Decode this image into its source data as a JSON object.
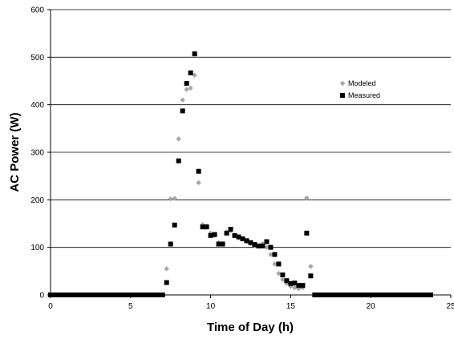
{
  "chart_data": {
    "type": "scatter",
    "title": "",
    "xlabel": "Time of Day (h)",
    "ylabel": "AC Power (W)",
    "xlim": [
      0,
      25
    ],
    "ylim": [
      0,
      600
    ],
    "x_ticks": [
      "0",
      "5",
      "10",
      "15",
      "20",
      "25"
    ],
    "y_ticks": [
      "0",
      "100",
      "200",
      "300",
      "400",
      "500",
      "600"
    ],
    "grid": "horizontal",
    "legend_position": "right",
    "series": [
      {
        "name": "Modeled",
        "color": "#a6a6a6",
        "marker": "diamond",
        "points": [
          [
            0.0,
            0
          ],
          [
            0.25,
            0
          ],
          [
            0.5,
            0
          ],
          [
            0.75,
            0
          ],
          [
            1.0,
            0
          ],
          [
            1.25,
            0
          ],
          [
            1.5,
            0
          ],
          [
            1.75,
            0
          ],
          [
            2.0,
            0
          ],
          [
            2.25,
            0
          ],
          [
            2.5,
            0
          ],
          [
            2.75,
            0
          ],
          [
            3.0,
            0
          ],
          [
            3.25,
            0
          ],
          [
            3.5,
            0
          ],
          [
            3.75,
            0
          ],
          [
            4.0,
            0
          ],
          [
            4.25,
            0
          ],
          [
            4.5,
            0
          ],
          [
            4.75,
            0
          ],
          [
            5.0,
            0
          ],
          [
            5.25,
            0
          ],
          [
            5.5,
            0
          ],
          [
            5.75,
            0
          ],
          [
            6.0,
            0
          ],
          [
            6.25,
            0
          ],
          [
            6.5,
            0
          ],
          [
            6.75,
            0
          ],
          [
            7.0,
            0
          ],
          [
            7.25,
            55
          ],
          [
            7.5,
            202
          ],
          [
            7.75,
            203
          ],
          [
            8.0,
            328
          ],
          [
            8.25,
            410
          ],
          [
            8.5,
            432
          ],
          [
            8.75,
            435
          ],
          [
            9.0,
            462
          ],
          [
            9.25,
            236
          ],
          [
            9.5,
            148
          ],
          [
            9.75,
            145
          ],
          [
            10.0,
            130
          ],
          [
            10.25,
            125
          ],
          [
            10.5,
            110
          ],
          [
            10.75,
            108
          ],
          [
            11.0,
            132
          ],
          [
            11.25,
            135
          ],
          [
            11.5,
            125
          ],
          [
            11.75,
            120
          ],
          [
            12.0,
            118
          ],
          [
            12.25,
            112
          ],
          [
            12.5,
            108
          ],
          [
            12.75,
            104
          ],
          [
            13.0,
            102
          ],
          [
            13.25,
            108
          ],
          [
            13.5,
            100
          ],
          [
            13.75,
            85
          ],
          [
            14.0,
            65
          ],
          [
            14.25,
            45
          ],
          [
            14.5,
            32
          ],
          [
            14.75,
            24
          ],
          [
            15.0,
            18
          ],
          [
            15.25,
            15
          ],
          [
            15.5,
            13
          ],
          [
            15.75,
            15
          ],
          [
            16.0,
            204
          ],
          [
            16.25,
            60
          ],
          [
            16.5,
            0
          ],
          [
            16.75,
            0
          ],
          [
            17.0,
            0
          ],
          [
            17.25,
            0
          ],
          [
            17.5,
            0
          ],
          [
            17.75,
            0
          ],
          [
            18.0,
            0
          ],
          [
            18.25,
            0
          ],
          [
            18.5,
            0
          ],
          [
            18.75,
            0
          ],
          [
            19.0,
            0
          ],
          [
            19.25,
            0
          ],
          [
            19.5,
            0
          ],
          [
            19.75,
            0
          ],
          [
            20.0,
            0
          ],
          [
            20.25,
            0
          ],
          [
            20.5,
            0
          ],
          [
            20.75,
            0
          ],
          [
            21.0,
            0
          ],
          [
            21.25,
            0
          ],
          [
            21.5,
            0
          ],
          [
            21.75,
            0
          ],
          [
            22.0,
            0
          ],
          [
            22.25,
            0
          ],
          [
            22.5,
            0
          ],
          [
            22.75,
            0
          ],
          [
            23.0,
            0
          ],
          [
            23.25,
            0
          ],
          [
            23.5,
            0
          ],
          [
            23.75,
            0
          ]
        ]
      },
      {
        "name": "Measured",
        "color": "#000000",
        "marker": "square",
        "points": [
          [
            0.0,
            0
          ],
          [
            0.25,
            0
          ],
          [
            0.5,
            0
          ],
          [
            0.75,
            0
          ],
          [
            1.0,
            0
          ],
          [
            1.25,
            0
          ],
          [
            1.5,
            0
          ],
          [
            1.75,
            0
          ],
          [
            2.0,
            0
          ],
          [
            2.25,
            0
          ],
          [
            2.5,
            0
          ],
          [
            2.75,
            0
          ],
          [
            3.0,
            0
          ],
          [
            3.25,
            0
          ],
          [
            3.5,
            0
          ],
          [
            3.75,
            0
          ],
          [
            4.0,
            0
          ],
          [
            4.25,
            0
          ],
          [
            4.5,
            0
          ],
          [
            4.75,
            0
          ],
          [
            5.0,
            0
          ],
          [
            5.25,
            0
          ],
          [
            5.5,
            0
          ],
          [
            5.75,
            0
          ],
          [
            6.0,
            0
          ],
          [
            6.25,
            0
          ],
          [
            6.5,
            0
          ],
          [
            6.75,
            0
          ],
          [
            7.0,
            0
          ],
          [
            7.25,
            26
          ],
          [
            7.5,
            107
          ],
          [
            7.75,
            147
          ],
          [
            8.0,
            282
          ],
          [
            8.25,
            387
          ],
          [
            8.5,
            445
          ],
          [
            8.75,
            467
          ],
          [
            9.0,
            507
          ],
          [
            9.25,
            260
          ],
          [
            9.5,
            143
          ],
          [
            9.75,
            143
          ],
          [
            10.0,
            125
          ],
          [
            10.25,
            127
          ],
          [
            10.5,
            107
          ],
          [
            10.75,
            107
          ],
          [
            11.0,
            130
          ],
          [
            11.25,
            138
          ],
          [
            11.5,
            125
          ],
          [
            11.75,
            122
          ],
          [
            12.0,
            118
          ],
          [
            12.25,
            114
          ],
          [
            12.5,
            110
          ],
          [
            12.75,
            106
          ],
          [
            13.0,
            103
          ],
          [
            13.25,
            103
          ],
          [
            13.5,
            112
          ],
          [
            13.75,
            100
          ],
          [
            14.0,
            85
          ],
          [
            14.25,
            65
          ],
          [
            14.5,
            42
          ],
          [
            14.75,
            30
          ],
          [
            15.0,
            24
          ],
          [
            15.25,
            25
          ],
          [
            15.5,
            20
          ],
          [
            15.75,
            20
          ],
          [
            16.0,
            130
          ],
          [
            16.25,
            40
          ],
          [
            16.5,
            0
          ],
          [
            16.75,
            0
          ],
          [
            17.0,
            0
          ],
          [
            17.25,
            0
          ],
          [
            17.5,
            0
          ],
          [
            17.75,
            0
          ],
          [
            18.0,
            0
          ],
          [
            18.25,
            0
          ],
          [
            18.5,
            0
          ],
          [
            18.75,
            0
          ],
          [
            19.0,
            0
          ],
          [
            19.25,
            0
          ],
          [
            19.5,
            0
          ],
          [
            19.75,
            0
          ],
          [
            20.0,
            0
          ],
          [
            20.25,
            0
          ],
          [
            20.5,
            0
          ],
          [
            20.75,
            0
          ],
          [
            21.0,
            0
          ],
          [
            21.25,
            0
          ],
          [
            21.5,
            0
          ],
          [
            21.75,
            0
          ],
          [
            22.0,
            0
          ],
          [
            22.25,
            0
          ],
          [
            22.5,
            0
          ],
          [
            22.75,
            0
          ],
          [
            23.0,
            0
          ],
          [
            23.25,
            0
          ],
          [
            23.5,
            0
          ],
          [
            23.75,
            0
          ]
        ]
      }
    ]
  }
}
